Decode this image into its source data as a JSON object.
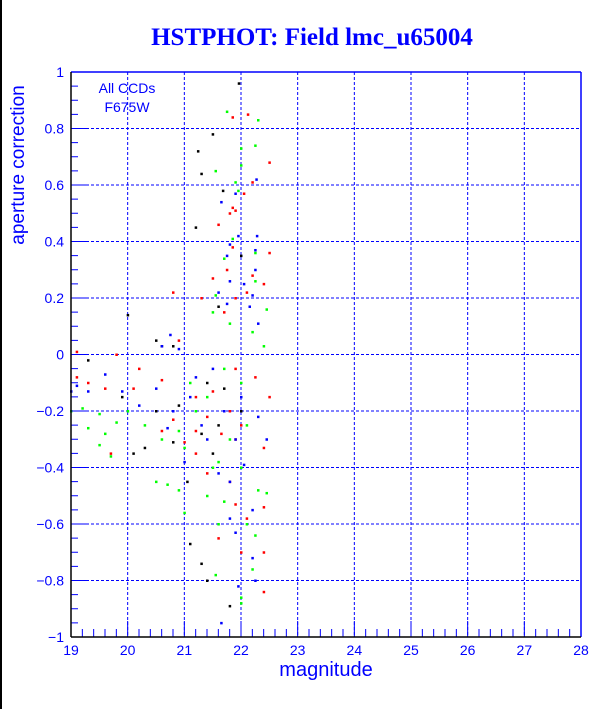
{
  "title": "HSTPHOT: Field lmc_u65004",
  "chart_data": {
    "type": "scatter",
    "title": "HSTPHOT: Field lmc_u65004",
    "xlabel": "magnitude",
    "ylabel": "aperture correction",
    "xlim": [
      19,
      28
    ],
    "ylim": [
      -1,
      1
    ],
    "xticks": [
      "19",
      "20",
      "21",
      "22",
      "23",
      "24",
      "25",
      "26",
      "27",
      "28"
    ],
    "yticks": [
      "-1",
      "-0.8",
      "-0.6",
      "-0.4",
      "-0.2",
      "0",
      "0.2",
      "0.4",
      "0.6",
      "0.8",
      "1"
    ],
    "grid": true,
    "annotations": [
      "All CCDs",
      "F675W"
    ],
    "series": [
      {
        "name": "black",
        "color": "#000000",
        "points": [
          [
            21.96,
            0.96
          ],
          [
            21.5,
            0.78
          ],
          [
            21.24,
            0.72
          ],
          [
            21.3,
            0.64
          ],
          [
            21.68,
            0.58
          ],
          [
            21.2,
            0.45
          ],
          [
            22.0,
            0.35
          ],
          [
            20.0,
            0.14
          ],
          [
            21.6,
            0.17
          ],
          [
            20.5,
            0.05
          ],
          [
            20.6,
            0.03
          ],
          [
            20.8,
            0.03
          ],
          [
            21.8,
            -0.89
          ],
          [
            21.4,
            -0.8
          ],
          [
            21.1,
            -0.67
          ],
          [
            21.3,
            -0.74
          ],
          [
            20.1,
            -0.35
          ],
          [
            20.3,
            -0.33
          ],
          [
            21.05,
            -0.45
          ],
          [
            21.3,
            -0.28
          ],
          [
            21.4,
            -0.1
          ],
          [
            20.8,
            -0.31
          ],
          [
            19.9,
            -0.15
          ],
          [
            21.6,
            -0.25
          ],
          [
            20.9,
            -0.18
          ],
          [
            21.7,
            -0.12
          ],
          [
            22.0,
            -0.2
          ],
          [
            21.5,
            -0.35
          ],
          [
            20.5,
            -0.2
          ],
          [
            19.3,
            -0.02
          ]
        ]
      },
      {
        "name": "red",
        "color": "#ff0000",
        "points": [
          [
            21.85,
            0.84
          ],
          [
            22.12,
            0.85
          ],
          [
            22.5,
            0.68
          ],
          [
            22.2,
            0.61
          ],
          [
            22.05,
            0.57
          ],
          [
            21.85,
            0.52
          ],
          [
            21.9,
            0.51
          ],
          [
            21.8,
            0.5
          ],
          [
            21.6,
            0.46
          ],
          [
            21.85,
            0.38
          ],
          [
            22.5,
            0.36
          ],
          [
            21.75,
            0.3
          ],
          [
            21.5,
            0.27
          ],
          [
            22.2,
            0.28
          ],
          [
            22.4,
            0.25
          ],
          [
            20.8,
            0.22
          ],
          [
            21.3,
            0.2
          ],
          [
            21.9,
            0.2
          ],
          [
            22.1,
            0.22
          ],
          [
            21.7,
            0.15
          ],
          [
            20.9,
            0.05
          ],
          [
            19.1,
            0.01
          ],
          [
            19.8,
            0.0
          ],
          [
            20.2,
            -0.05
          ],
          [
            19.3,
            -0.1
          ],
          [
            19.6,
            -0.12
          ],
          [
            19.1,
            -0.08
          ],
          [
            20.6,
            -0.09
          ],
          [
            21.2,
            -0.15
          ],
          [
            21.5,
            -0.13
          ],
          [
            21.8,
            -0.2
          ],
          [
            22.0,
            -0.25
          ],
          [
            21.9,
            -0.3
          ],
          [
            21.4,
            -0.22
          ],
          [
            21.2,
            -0.27
          ],
          [
            20.8,
            -0.23
          ],
          [
            19.7,
            -0.35
          ],
          [
            20.1,
            -0.12
          ],
          [
            22.5,
            -0.15
          ],
          [
            22.4,
            -0.33
          ],
          [
            21.8,
            -0.45
          ],
          [
            21.9,
            -0.53
          ],
          [
            22.4,
            -0.54
          ],
          [
            22.1,
            -0.58
          ],
          [
            22.0,
            -0.7
          ],
          [
            21.6,
            -0.65
          ],
          [
            22.4,
            -0.7
          ],
          [
            22.4,
            -0.84
          ],
          [
            21.9,
            -0.05
          ],
          [
            22.25,
            -0.08
          ],
          [
            21.0,
            -0.31
          ],
          [
            21.4,
            -0.42
          ],
          [
            21.2,
            -0.35
          ],
          [
            20.6,
            -0.27
          ],
          [
            21.65,
            -0.28
          ]
        ]
      },
      {
        "name": "green",
        "color": "#00ff00",
        "points": [
          [
            21.75,
            0.86
          ],
          [
            22.3,
            0.83
          ],
          [
            22.0,
            0.73
          ],
          [
            22.25,
            0.74
          ],
          [
            22.0,
            0.67
          ],
          [
            21.55,
            0.65
          ],
          [
            21.95,
            0.58
          ],
          [
            21.9,
            0.61
          ],
          [
            21.85,
            0.41
          ],
          [
            21.7,
            0.34
          ],
          [
            22.25,
            0.36
          ],
          [
            22.25,
            0.26
          ],
          [
            21.55,
            0.21
          ],
          [
            21.5,
            0.15
          ],
          [
            22.45,
            0.16
          ],
          [
            21.8,
            0.11
          ],
          [
            22.2,
            0.08
          ],
          [
            22.4,
            0.03
          ],
          [
            19.0,
            -0.2
          ],
          [
            19.2,
            -0.19
          ],
          [
            19.5,
            -0.21
          ],
          [
            19.8,
            -0.24
          ],
          [
            19.3,
            -0.26
          ],
          [
            19.6,
            -0.28
          ],
          [
            20.0,
            -0.2
          ],
          [
            20.3,
            -0.25
          ],
          [
            20.6,
            -0.3
          ],
          [
            20.9,
            -0.27
          ],
          [
            21.0,
            -0.33
          ],
          [
            21.2,
            -0.2
          ],
          [
            21.4,
            -0.15
          ],
          [
            21.6,
            -0.38
          ],
          [
            21.8,
            -0.3
          ],
          [
            22.1,
            -0.25
          ],
          [
            22.0,
            -0.4
          ],
          [
            21.5,
            -0.4
          ],
          [
            20.7,
            -0.46
          ],
          [
            20.5,
            -0.45
          ],
          [
            20.9,
            -0.48
          ],
          [
            21.0,
            -0.56
          ],
          [
            21.4,
            -0.5
          ],
          [
            21.7,
            -0.52
          ],
          [
            22.3,
            -0.48
          ],
          [
            22.45,
            -0.49
          ],
          [
            21.6,
            -0.6
          ],
          [
            22.1,
            -0.6
          ],
          [
            22.25,
            -0.64
          ],
          [
            21.55,
            -0.78
          ],
          [
            22.2,
            -0.76
          ],
          [
            22.0,
            -0.86
          ],
          [
            22.0,
            -0.88
          ],
          [
            21.1,
            -0.1
          ],
          [
            21.7,
            -0.05
          ],
          [
            22.0,
            -0.1
          ],
          [
            19.5,
            -0.32
          ],
          [
            19.7,
            -0.36
          ]
        ]
      },
      {
        "name": "blue",
        "color": "#0000ff",
        "points": [
          [
            22.27,
            0.62
          ],
          [
            21.9,
            0.57
          ],
          [
            21.65,
            0.54
          ],
          [
            22.28,
            0.42
          ],
          [
            21.95,
            0.42
          ],
          [
            21.8,
            0.39
          ],
          [
            22.25,
            0.37
          ],
          [
            22.25,
            0.3
          ],
          [
            21.75,
            0.35
          ],
          [
            22.05,
            0.25
          ],
          [
            21.6,
            0.22
          ],
          [
            21.8,
            0.26
          ],
          [
            21.75,
            0.18
          ],
          [
            22.2,
            0.21
          ],
          [
            22.15,
            0.17
          ],
          [
            22.3,
            0.11
          ],
          [
            20.75,
            0.07
          ],
          [
            20.6,
            0.03
          ],
          [
            20.9,
            0.02
          ],
          [
            19.0,
            -0.13
          ],
          [
            19.1,
            -0.11
          ],
          [
            19.3,
            -0.13
          ],
          [
            19.6,
            -0.07
          ],
          [
            19.9,
            -0.13
          ],
          [
            20.2,
            -0.18
          ],
          [
            20.5,
            -0.12
          ],
          [
            20.8,
            -0.2
          ],
          [
            21.1,
            -0.15
          ],
          [
            21.3,
            -0.25
          ],
          [
            21.5,
            -0.05
          ],
          [
            21.7,
            -0.2
          ],
          [
            21.9,
            -0.3
          ],
          [
            22.0,
            -0.15
          ],
          [
            22.3,
            -0.22
          ],
          [
            22.45,
            -0.3
          ],
          [
            21.2,
            -0.08
          ],
          [
            20.7,
            -0.26
          ],
          [
            21.4,
            -0.3
          ],
          [
            21.6,
            -0.42
          ],
          [
            22.05,
            -0.39
          ],
          [
            22.2,
            -0.55
          ],
          [
            21.8,
            -0.58
          ],
          [
            21.9,
            -0.63
          ],
          [
            22.2,
            -0.72
          ],
          [
            22.25,
            -0.8
          ],
          [
            21.95,
            -0.82
          ],
          [
            21.65,
            -0.95
          ],
          [
            21.8,
            -0.45
          ],
          [
            21.0,
            -0.38
          ]
        ]
      }
    ]
  }
}
